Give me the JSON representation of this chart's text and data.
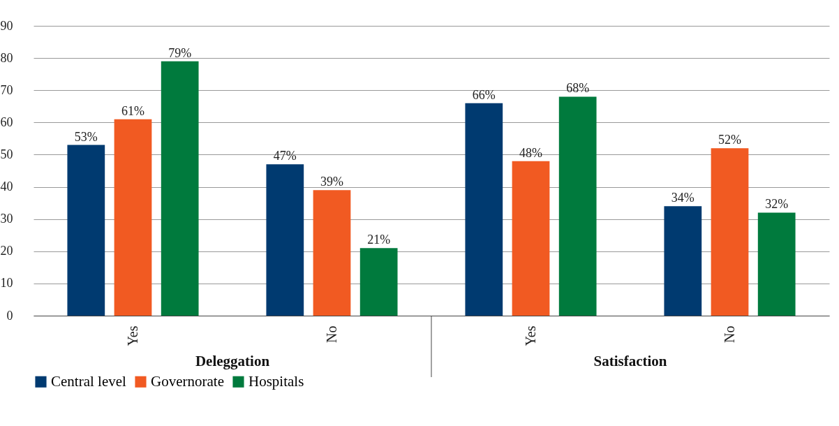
{
  "chart_data": {
    "type": "bar",
    "categories": [
      "Yes",
      "No",
      "Yes",
      "No"
    ],
    "series": [
      {
        "name": "Central level",
        "color": "#003a70",
        "values": [
          53,
          47,
          66,
          34
        ],
        "value_labels": [
          "53%",
          "47%",
          "66%",
          "34%"
        ]
      },
      {
        "name": "Governorate",
        "color": "#f15a22",
        "values": [
          61,
          39,
          48,
          52
        ],
        "value_labels": [
          "61%",
          "39%",
          "48%",
          "52%"
        ]
      },
      {
        "name": "Hospitals",
        "color": "#007a3d",
        "values": [
          79,
          21,
          68,
          32
        ],
        "value_labels": [
          "79%",
          "21%",
          "68%",
          "32%"
        ]
      }
    ],
    "annotations": [
      "Deleggation",
      "Satisfaction"
    ],
    "ylim": [
      0,
      90
    ],
    "yticks": [
      0,
      10,
      20,
      30,
      40,
      50,
      60,
      70,
      80,
      90
    ],
    "grid": "y",
    "legend": "bottom"
  }
}
